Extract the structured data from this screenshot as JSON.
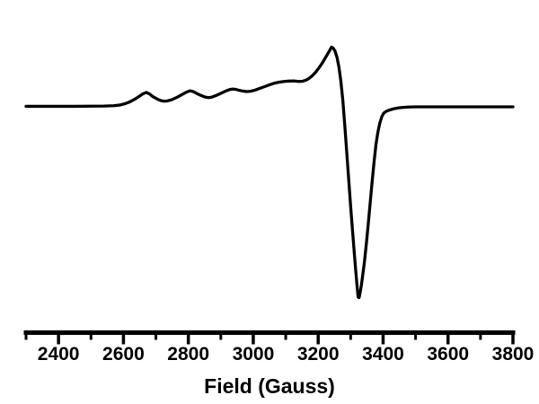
{
  "figure": {
    "background": "#ffffff",
    "foreground": "#000000"
  },
  "chart_data": {
    "type": "line",
    "title": "",
    "xlabel": "Field (Gauss)",
    "ylabel": "",
    "xlim": [
      2300,
      3800
    ],
    "ylim": [
      -3.51,
      1.25
    ],
    "grid": false,
    "legend_position": "none",
    "line_color": "#000000",
    "line_width": 3.3,
    "axis_color": "#000000",
    "x_major_ticks": [
      2400,
      2600,
      2800,
      3000,
      3200,
      3400,
      3600,
      3800
    ],
    "x_tick_labels": [
      "2400",
      "2600",
      "2800",
      "3000",
      "3200",
      "3400",
      "3600",
      "3800"
    ],
    "x_minor_ticks": [
      2300,
      2500,
      2700,
      2900,
      3100,
      3300,
      3500,
      3700
    ],
    "y_axis_visible": false,
    "features": {
      "hyperfine_bump_fields_gauss": [
        2670,
        2805,
        2935,
        3080
      ],
      "main_peak_field_gauss": 3240,
      "main_minimum_field_gauss": 3324,
      "baseline_intensity": 0
    },
    "series": [
      {
        "name": "spectrum",
        "x": [
          2300,
          2350,
          2400,
          2450,
          2500,
          2540,
          2570,
          2590,
          2605,
          2620,
          2635,
          2650,
          2660,
          2670,
          2680,
          2690,
          2705,
          2715,
          2725,
          2735,
          2750,
          2765,
          2780,
          2795,
          2805,
          2815,
          2825,
          2840,
          2852,
          2862,
          2872,
          2885,
          2900,
          2915,
          2928,
          2936,
          2945,
          2955,
          2968,
          2980,
          2992,
          3005,
          3020,
          3035,
          3050,
          3065,
          3080,
          3095,
          3110,
          3125,
          3140,
          3152,
          3162,
          3172,
          3182,
          3192,
          3202,
          3212,
          3222,
          3230,
          3236,
          3241,
          3246,
          3252,
          3258,
          3264,
          3270,
          3276,
          3282,
          3288,
          3294,
          3300,
          3306,
          3311,
          3316,
          3320,
          3323,
          3326,
          3329,
          3333,
          3336,
          3342,
          3348,
          3354,
          3360,
          3366,
          3372,
          3378,
          3384,
          3390,
          3396,
          3402,
          3410,
          3420,
          3435,
          3450,
          3475,
          3500,
          3550,
          3600,
          3650,
          3700,
          3750,
          3800
        ],
        "y": [
          0,
          0,
          0,
          0,
          0.003,
          0.005,
          0.011,
          0.023,
          0.045,
          0.076,
          0.121,
          0.174,
          0.212,
          0.235,
          0.212,
          0.167,
          0.121,
          0.098,
          0.086,
          0.091,
          0.114,
          0.152,
          0.197,
          0.242,
          0.262,
          0.25,
          0.22,
          0.182,
          0.156,
          0.147,
          0.155,
          0.182,
          0.22,
          0.258,
          0.285,
          0.292,
          0.288,
          0.273,
          0.258,
          0.25,
          0.255,
          0.273,
          0.303,
          0.333,
          0.364,
          0.391,
          0.409,
          0.42,
          0.427,
          0.429,
          0.42,
          0.424,
          0.442,
          0.473,
          0.518,
          0.576,
          0.647,
          0.727,
          0.818,
          0.894,
          0.95,
          1.0,
          0.985,
          0.932,
          0.826,
          0.659,
          0.417,
          0.098,
          -0.326,
          -0.78,
          -1.235,
          -1.689,
          -2.114,
          -2.462,
          -2.795,
          -3.05,
          -3.22,
          -3.23,
          -3.15,
          -3.02,
          -2.9,
          -2.65,
          -2.34,
          -2.0,
          -1.644,
          -1.28,
          -0.947,
          -0.644,
          -0.432,
          -0.28,
          -0.174,
          -0.114,
          -0.083,
          -0.061,
          -0.038,
          -0.023,
          -0.012,
          -0.008,
          -0.008,
          -0.008,
          -0.008,
          -0.008,
          -0.008,
          -0.008
        ]
      }
    ]
  }
}
